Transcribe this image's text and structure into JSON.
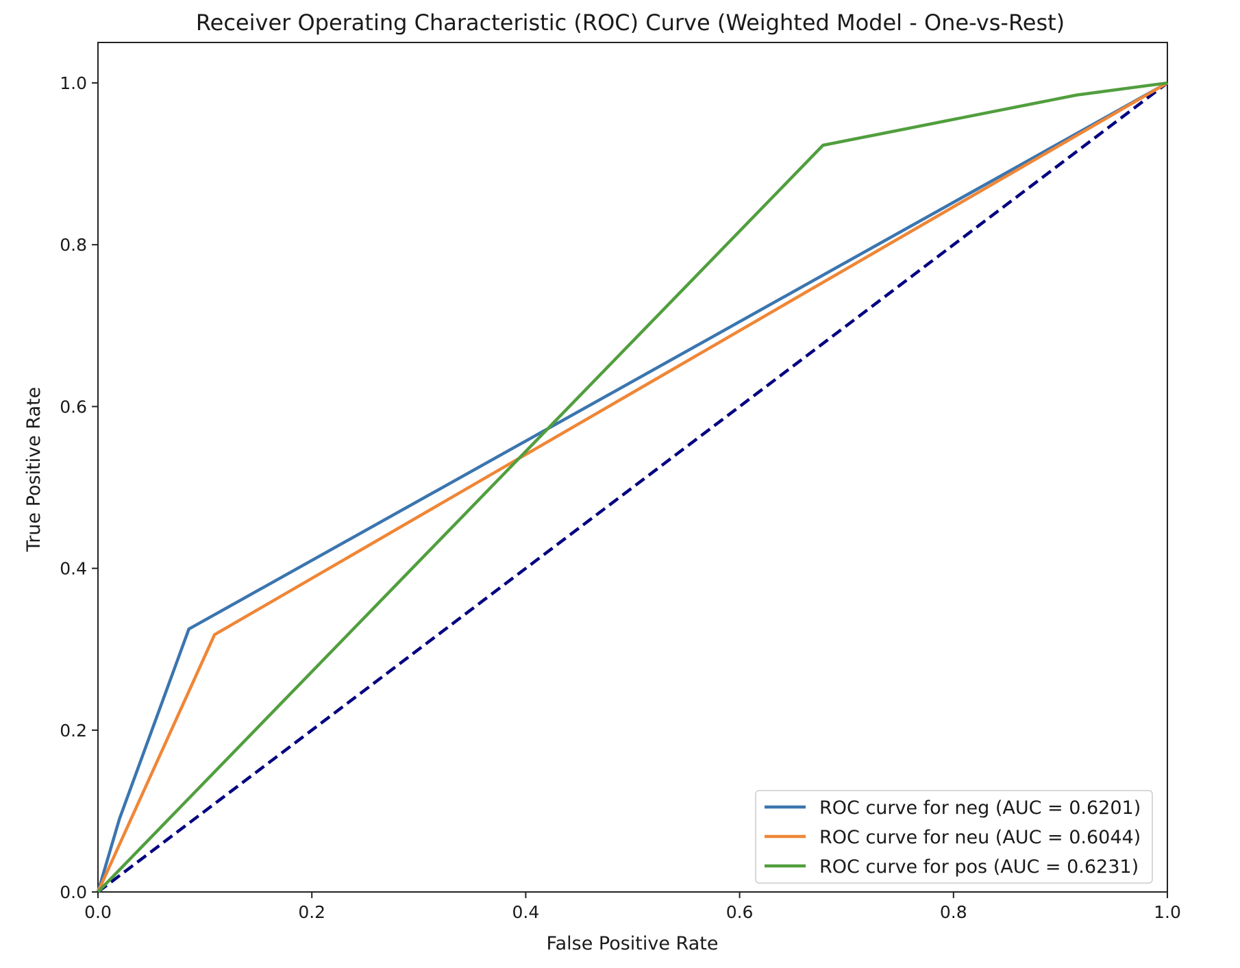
{
  "chart_data": {
    "type": "line",
    "title": "Receiver Operating Characteristic (ROC) Curve (Weighted Model - One-vs-Rest)",
    "xlabel": "False Positive Rate",
    "ylabel": "True Positive Rate",
    "xlim": [
      0.0,
      1.0
    ],
    "ylim": [
      0.0,
      1.05
    ],
    "xticks": [
      0.0,
      0.2,
      0.4,
      0.6,
      0.8,
      1.0
    ],
    "yticks": [
      0.0,
      0.2,
      0.4,
      0.6,
      0.8,
      1.0
    ],
    "xtick_labels": [
      "0.0",
      "0.2",
      "0.4",
      "0.6",
      "0.8",
      "1.0"
    ],
    "ytick_labels": [
      "0.0",
      "0.2",
      "0.4",
      "0.6",
      "0.8",
      "1.0"
    ],
    "grid": false,
    "legend_position": "lower-right",
    "series": [
      {
        "name": "ROC curve for neg (AUC = 0.6201)",
        "color": "#3b75af",
        "x": [
          0.0,
          0.02,
          0.085,
          1.0
        ],
        "y": [
          0.0,
          0.09,
          0.325,
          1.0
        ]
      },
      {
        "name": "ROC curve for neu (AUC = 0.6044)",
        "color": "#ef8636",
        "x": [
          0.0,
          0.109,
          1.0
        ],
        "y": [
          0.0,
          0.318,
          1.0
        ]
      },
      {
        "name": "ROC curve for pos (AUC = 0.6231)",
        "color": "#519e3e",
        "x": [
          0.0,
          0.678,
          0.915,
          1.0
        ],
        "y": [
          0.0,
          0.923,
          0.985,
          1.0
        ]
      }
    ],
    "reference_line": {
      "color": "#000080",
      "style": "dashed",
      "x": [
        0.0,
        1.0
      ],
      "y": [
        0.0,
        1.0
      ]
    }
  }
}
